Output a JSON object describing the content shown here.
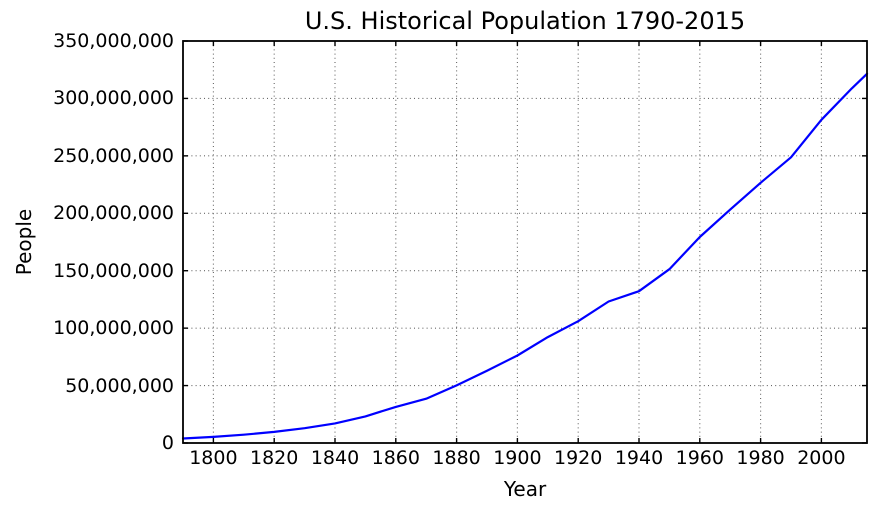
{
  "figure": {
    "background": "#ffffff",
    "text_color": "#000000"
  },
  "chart_data": {
    "type": "line",
    "title": "U.S. Historical Population 1790-2015",
    "xlabel": "Year",
    "ylabel": "People",
    "x": [
      1790,
      1800,
      1810,
      1820,
      1830,
      1840,
      1850,
      1860,
      1870,
      1880,
      1890,
      1900,
      1910,
      1920,
      1930,
      1940,
      1950,
      1960,
      1970,
      1980,
      1990,
      2000,
      2010,
      2015
    ],
    "y": [
      3929214,
      5308483,
      7239881,
      9638453,
      12866020,
      17069453,
      23191876,
      31443321,
      38558371,
      50189209,
      62979766,
      76212168,
      92228496,
      106021537,
      123202624,
      132164569,
      151325798,
      179323175,
      203211926,
      226545805,
      248709873,
      281421906,
      308745538,
      321418820
    ],
    "xlim": [
      1790,
      2015
    ],
    "ylim": [
      0,
      350000000
    ],
    "x_ticks": [
      1800,
      1820,
      1840,
      1860,
      1880,
      1900,
      1920,
      1940,
      1960,
      1980,
      2000
    ],
    "x_tick_labels": [
      "1800",
      "1820",
      "1840",
      "1860",
      "1880",
      "1900",
      "1920",
      "1940",
      "1960",
      "1980",
      "2000"
    ],
    "y_ticks": [
      0,
      50000000,
      100000000,
      150000000,
      200000000,
      250000000,
      300000000,
      350000000
    ],
    "y_tick_labels": [
      "0",
      "50,000,000",
      "100,000,000",
      "150,000,000",
      "200,000,000",
      "250,000,000",
      "300,000,000",
      "350,000,000"
    ],
    "line_color": "#0000ff",
    "grid": {
      "visible": true,
      "style": "dotted",
      "color": "#666666"
    },
    "spine_color": "#000000",
    "tick_direction": "in",
    "legend": "none"
  }
}
